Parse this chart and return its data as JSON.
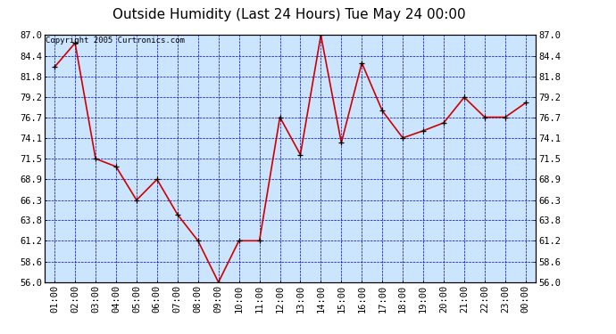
{
  "title": "Outside Humidity (Last 24 Hours) Tue May 24 00:00",
  "copyright": "Copyright 2005 Curtronics.com",
  "x_labels": [
    "01:00",
    "02:00",
    "03:00",
    "04:00",
    "05:00",
    "06:00",
    "07:00",
    "08:00",
    "09:00",
    "10:00",
    "11:00",
    "12:00",
    "13:00",
    "14:00",
    "15:00",
    "16:00",
    "17:00",
    "18:00",
    "19:00",
    "20:00",
    "21:00",
    "22:00",
    "23:00",
    "00:00"
  ],
  "y_values": [
    83.0,
    86.0,
    71.5,
    70.5,
    66.3,
    68.9,
    64.5,
    61.2,
    56.0,
    61.2,
    61.2,
    76.7,
    72.0,
    87.0,
    73.5,
    83.5,
    77.5,
    74.1,
    75.0,
    76.0,
    79.2,
    76.7,
    76.7,
    78.5
  ],
  "y_min": 56.0,
  "y_max": 87.0,
  "y_ticks": [
    56.0,
    58.6,
    61.2,
    63.8,
    66.3,
    68.9,
    71.5,
    74.1,
    76.7,
    79.2,
    81.8,
    84.4,
    87.0
  ],
  "line_color": "#cc0000",
  "marker_color": "#000000",
  "bg_color": "#cce5ff",
  "grid_color": "#0000bb",
  "border_color": "#000000",
  "outer_bg": "#ffffff",
  "title_fontsize": 11,
  "tick_fontsize": 7.5,
  "copyright_fontsize": 6.5
}
